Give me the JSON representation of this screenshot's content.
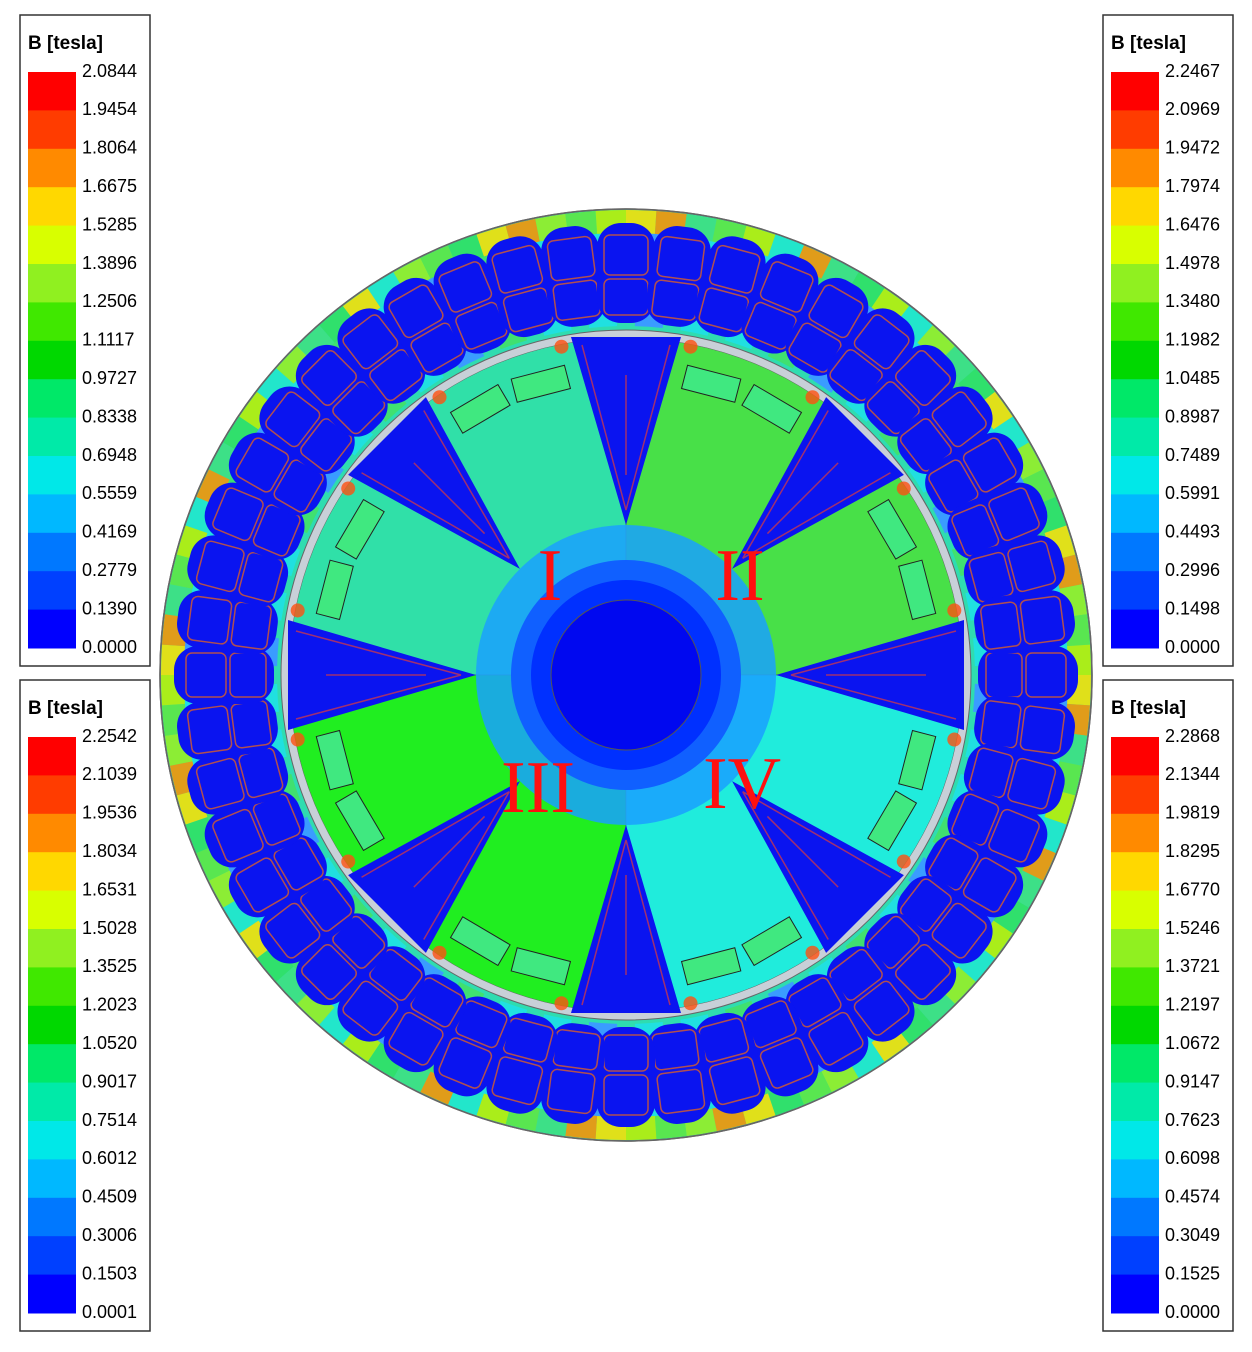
{
  "legends": [
    {
      "title": "B [tesla]",
      "labels": [
        "2.0844",
        "1.9454",
        "1.8064",
        "1.6675",
        "1.5285",
        "1.3896",
        "1.2506",
        "1.1117",
        "0.9727",
        "0.8338",
        "0.6948",
        "0.5559",
        "0.4169",
        "0.2779",
        "0.1390",
        "0.0000"
      ]
    },
    {
      "title": "B [tesla]",
      "labels": [
        "2.2542",
        "2.1039",
        "1.9536",
        "1.8034",
        "1.6531",
        "1.5028",
        "1.3525",
        "1.2023",
        "1.0520",
        "0.9017",
        "0.7514",
        "0.6012",
        "0.4509",
        "0.3006",
        "0.1503",
        "0.0001"
      ]
    },
    {
      "title": "B [tesla]",
      "labels": [
        "2.2467",
        "2.0969",
        "1.9472",
        "1.7974",
        "1.6476",
        "1.4978",
        "1.3480",
        "1.1982",
        "1.0485",
        "0.8987",
        "0.7489",
        "0.5991",
        "0.4493",
        "0.2996",
        "0.1498",
        "0.0000"
      ]
    },
    {
      "title": "B [tesla]",
      "labels": [
        "2.2868",
        "2.1344",
        "1.9819",
        "1.8295",
        "1.6770",
        "1.5246",
        "1.3721",
        "1.2197",
        "1.0672",
        "0.9147",
        "0.7623",
        "0.6098",
        "0.4574",
        "0.3049",
        "0.1525",
        "0.0000"
      ]
    }
  ],
  "quadrants": [
    "I",
    "II",
    "III",
    "IV"
  ]
}
